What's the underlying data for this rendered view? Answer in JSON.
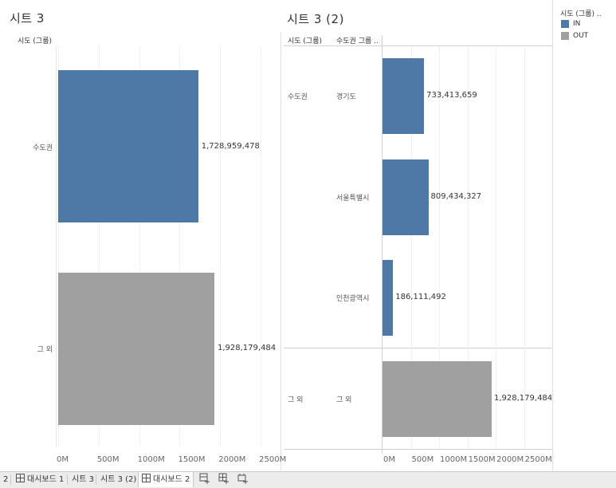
{
  "left_sheet": {
    "title": "시트 3",
    "column_header": "시도 (그룹)"
  },
  "right_sheet": {
    "title": "시트 3 (2)",
    "col_header_1": "시도 (그룹)",
    "col_header_2": "수도권 그룹 .."
  },
  "legend": {
    "title": "시도 (그룹) ..",
    "items": [
      {
        "label": "IN",
        "color": "#4e79a7"
      },
      {
        "label": "OUT",
        "color": "#a0a0a0"
      }
    ]
  },
  "tabs": [
    {
      "label": "2",
      "icon": ""
    },
    {
      "label": "대시보드 1",
      "icon": "grid-icon"
    },
    {
      "label": "시트 3",
      "icon": ""
    },
    {
      "label": "시트 3 (2)",
      "icon": ""
    },
    {
      "label": "대시보드 2",
      "icon": "grid-icon",
      "active": true
    }
  ],
  "chart_data": [
    {
      "type": "bar",
      "orientation": "horizontal",
      "title": "시트 3",
      "row_header": "시도 (그룹)",
      "categories": [
        "수도권",
        "그 외"
      ],
      "values": [
        1728959478,
        1928179484
      ],
      "value_labels": [
        "1,728,959,478",
        "1,928,179,484"
      ],
      "colors": [
        "#4e79a7",
        "#a0a0a0"
      ],
      "xlim": [
        0,
        2700000000
      ],
      "x_ticks": [
        "0M",
        "500M",
        "1000M",
        "1500M",
        "2000M",
        "2500M"
      ],
      "grid": true
    },
    {
      "type": "bar",
      "orientation": "horizontal",
      "title": "시트 3 (2)",
      "row_headers": [
        "시도 (그룹)",
        "수도권 그룹 .."
      ],
      "groups": [
        {
          "label": "수도권",
          "rows": [
            {
              "label": "경기도",
              "value": 733413659,
              "value_label": "733,413,659",
              "color": "#4e79a7"
            },
            {
              "label": "서울특별시",
              "value": 809434327,
              "value_label": "809,434,327",
              "color": "#4e79a7"
            },
            {
              "label": "인천광역시",
              "value": 186111492,
              "value_label": "186,111,492",
              "color": "#4e79a7"
            }
          ]
        },
        {
          "label": "그 외",
          "rows": [
            {
              "label": "그 외",
              "value": 1928179484,
              "value_label": "1,928,179,484",
              "color": "#a0a0a0"
            }
          ]
        }
      ],
      "xlim": [
        0,
        2700000000
      ],
      "x_ticks": [
        "0M",
        "500M",
        "1000M",
        "1500M",
        "2000M",
        "2500M"
      ],
      "grid": true
    }
  ]
}
